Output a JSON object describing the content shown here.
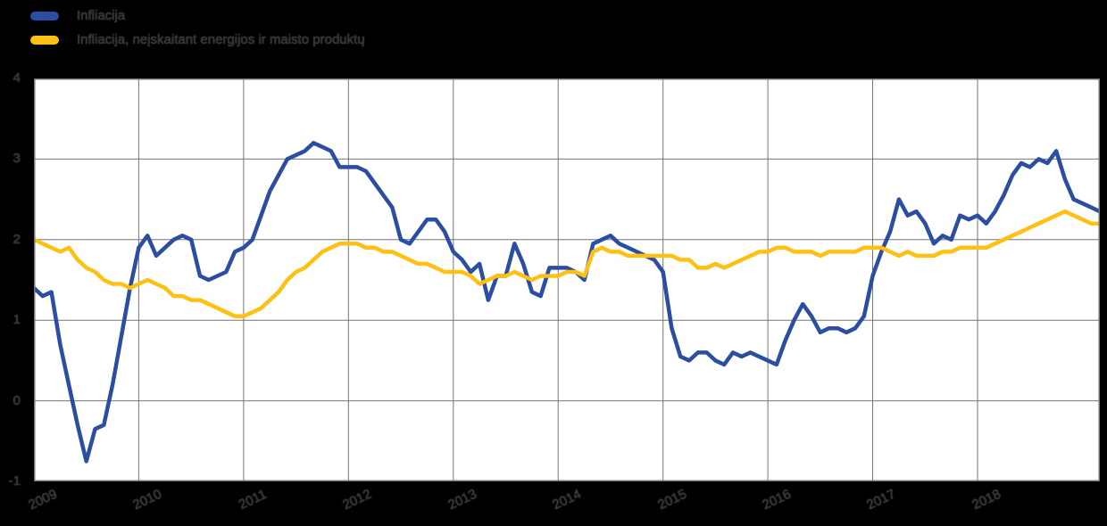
{
  "page": {
    "background": "#000000",
    "plot_background": "#ffffff",
    "grid_color": "#757575"
  },
  "legend": {
    "items": [
      {
        "label": "Infliacija",
        "color": "#2b4ea3"
      },
      {
        "label": "Infliacija, neįskaitant energijos ir maisto produktų",
        "color": "#fdc013"
      }
    ]
  },
  "chart_data": {
    "type": "line",
    "title": "",
    "xlabel": "",
    "ylabel": "",
    "ylim": [
      -1,
      4
    ],
    "y_ticks": [
      4,
      3,
      2,
      1,
      0,
      -1
    ],
    "x_tick_labels": [
      "2009",
      "2010",
      "2011",
      "2012",
      "2013",
      "2014",
      "2015",
      "2016",
      "2017",
      "2018"
    ],
    "x_frequency": "monthly",
    "x_start": "2009-01",
    "grid": true,
    "legend_position": "top-left",
    "line_width": 4.5,
    "series": [
      {
        "name": "Infliacija",
        "color": "#2b4ea3",
        "values": [
          1.4,
          1.3,
          1.35,
          0.7,
          0.2,
          -0.3,
          -0.75,
          -0.35,
          -0.3,
          0.2,
          0.8,
          1.4,
          1.9,
          2.05,
          1.8,
          1.9,
          2.0,
          2.05,
          2.0,
          1.55,
          1.5,
          1.55,
          1.6,
          1.85,
          1.9,
          2.0,
          2.3,
          2.6,
          2.8,
          3.0,
          3.05,
          3.1,
          3.2,
          3.15,
          3.1,
          2.9,
          2.9,
          2.9,
          2.85,
          2.7,
          2.55,
          2.4,
          2.0,
          1.95,
          2.1,
          2.25,
          2.25,
          2.1,
          1.85,
          1.75,
          1.6,
          1.7,
          1.25,
          1.55,
          1.55,
          1.95,
          1.7,
          1.35,
          1.3,
          1.65,
          1.65,
          1.65,
          1.6,
          1.5,
          1.95,
          2.0,
          2.05,
          1.95,
          1.9,
          1.85,
          1.8,
          1.75,
          1.6,
          0.9,
          0.55,
          0.5,
          0.6,
          0.6,
          0.5,
          0.45,
          0.6,
          0.55,
          0.6,
          0.55,
          0.5,
          0.45,
          0.75,
          1.0,
          1.2,
          1.05,
          0.85,
          0.9,
          0.9,
          0.85,
          0.9,
          1.05,
          1.55,
          1.85,
          2.1,
          2.5,
          2.3,
          2.35,
          2.2,
          1.95,
          2.05,
          2.0,
          2.3,
          2.25,
          2.3,
          2.2,
          2.35,
          2.55,
          2.8,
          2.95,
          2.9,
          3.0,
          2.95,
          3.1,
          2.75,
          2.5,
          2.45,
          2.4,
          2.35
        ]
      },
      {
        "name": "Infliacija, neįskaitant energijos ir maisto produktų",
        "color": "#fdc013",
        "values": [
          2.0,
          1.95,
          1.9,
          1.85,
          1.9,
          1.75,
          1.65,
          1.6,
          1.5,
          1.45,
          1.45,
          1.4,
          1.45,
          1.5,
          1.45,
          1.4,
          1.3,
          1.3,
          1.25,
          1.25,
          1.2,
          1.15,
          1.1,
          1.05,
          1.05,
          1.1,
          1.15,
          1.25,
          1.35,
          1.5,
          1.6,
          1.65,
          1.75,
          1.85,
          1.9,
          1.95,
          1.95,
          1.95,
          1.9,
          1.9,
          1.85,
          1.85,
          1.8,
          1.75,
          1.7,
          1.7,
          1.65,
          1.6,
          1.6,
          1.6,
          1.55,
          1.45,
          1.5,
          1.55,
          1.55,
          1.6,
          1.55,
          1.5,
          1.55,
          1.55,
          1.55,
          1.6,
          1.6,
          1.55,
          1.85,
          1.9,
          1.85,
          1.85,
          1.8,
          1.8,
          1.8,
          1.8,
          1.8,
          1.8,
          1.75,
          1.75,
          1.65,
          1.65,
          1.7,
          1.65,
          1.7,
          1.75,
          1.8,
          1.85,
          1.85,
          1.9,
          1.9,
          1.85,
          1.85,
          1.85,
          1.8,
          1.85,
          1.85,
          1.85,
          1.85,
          1.9,
          1.9,
          1.9,
          1.85,
          1.8,
          1.85,
          1.8,
          1.8,
          1.8,
          1.85,
          1.85,
          1.9,
          1.9,
          1.9,
          1.9,
          1.95,
          2.0,
          2.05,
          2.1,
          2.15,
          2.2,
          2.25,
          2.3,
          2.35,
          2.3,
          2.25,
          2.2,
          2.2
        ]
      }
    ]
  }
}
